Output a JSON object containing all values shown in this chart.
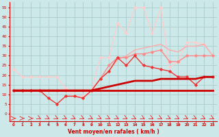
{
  "x": [
    0,
    1,
    2,
    3,
    4,
    5,
    6,
    7,
    8,
    9,
    10,
    11,
    12,
    13,
    14,
    15,
    16,
    17,
    18,
    19,
    20,
    21,
    22,
    23
  ],
  "line_thick_flat": [
    12,
    12,
    12,
    12,
    12,
    12,
    12,
    12,
    12,
    12,
    12,
    12,
    12,
    12,
    12,
    12,
    12,
    12,
    12,
    12,
    12,
    12,
    12,
    12
  ],
  "line_thick_rise": [
    12,
    12,
    12,
    12,
    12,
    12,
    12,
    12,
    12,
    12,
    13,
    14,
    15,
    16,
    17,
    17,
    17,
    18,
    18,
    18,
    18,
    18,
    19,
    19
  ],
  "line_dark_marker": [
    12,
    12,
    12,
    12,
    8,
    5,
    9,
    9,
    8,
    12,
    18,
    22,
    29,
    25,
    30,
    25,
    24,
    23,
    22,
    19,
    19,
    15,
    19,
    19
  ],
  "line_med_rise": [
    12,
    12,
    12,
    12,
    12,
    12,
    12,
    12,
    12,
    12,
    18,
    25,
    29,
    29,
    31,
    31,
    32,
    33,
    27,
    27,
    30,
    30,
    30,
    30
  ],
  "line_pink_peak": [
    23,
    19,
    19,
    19,
    19,
    19,
    13,
    9,
    9,
    12,
    29,
    29,
    47,
    42,
    55,
    55,
    42,
    55,
    24,
    27,
    37,
    37,
    36,
    30
  ],
  "line_upper_trend": [
    12,
    12,
    12,
    12,
    12,
    12,
    12,
    12,
    12,
    12,
    18,
    22,
    28,
    30,
    33,
    34,
    35,
    36,
    33,
    32,
    35,
    35,
    36,
    30
  ],
  "bg_color": "#cde8e8",
  "grid_color": "#aacccc",
  "col_darkred": "#cc0000",
  "col_medred": "#ee3333",
  "col_salmon": "#ff8888",
  "col_pink": "#ffaaaa",
  "col_lightpink": "#ffcccc",
  "xlabel": "Vent moyen/en rafales ( km/h )",
  "yticks": [
    0,
    5,
    10,
    15,
    20,
    25,
    30,
    35,
    40,
    45,
    50,
    55
  ],
  "ylim": [
    -4,
    58
  ],
  "xlim": [
    -0.5,
    23.5
  ]
}
